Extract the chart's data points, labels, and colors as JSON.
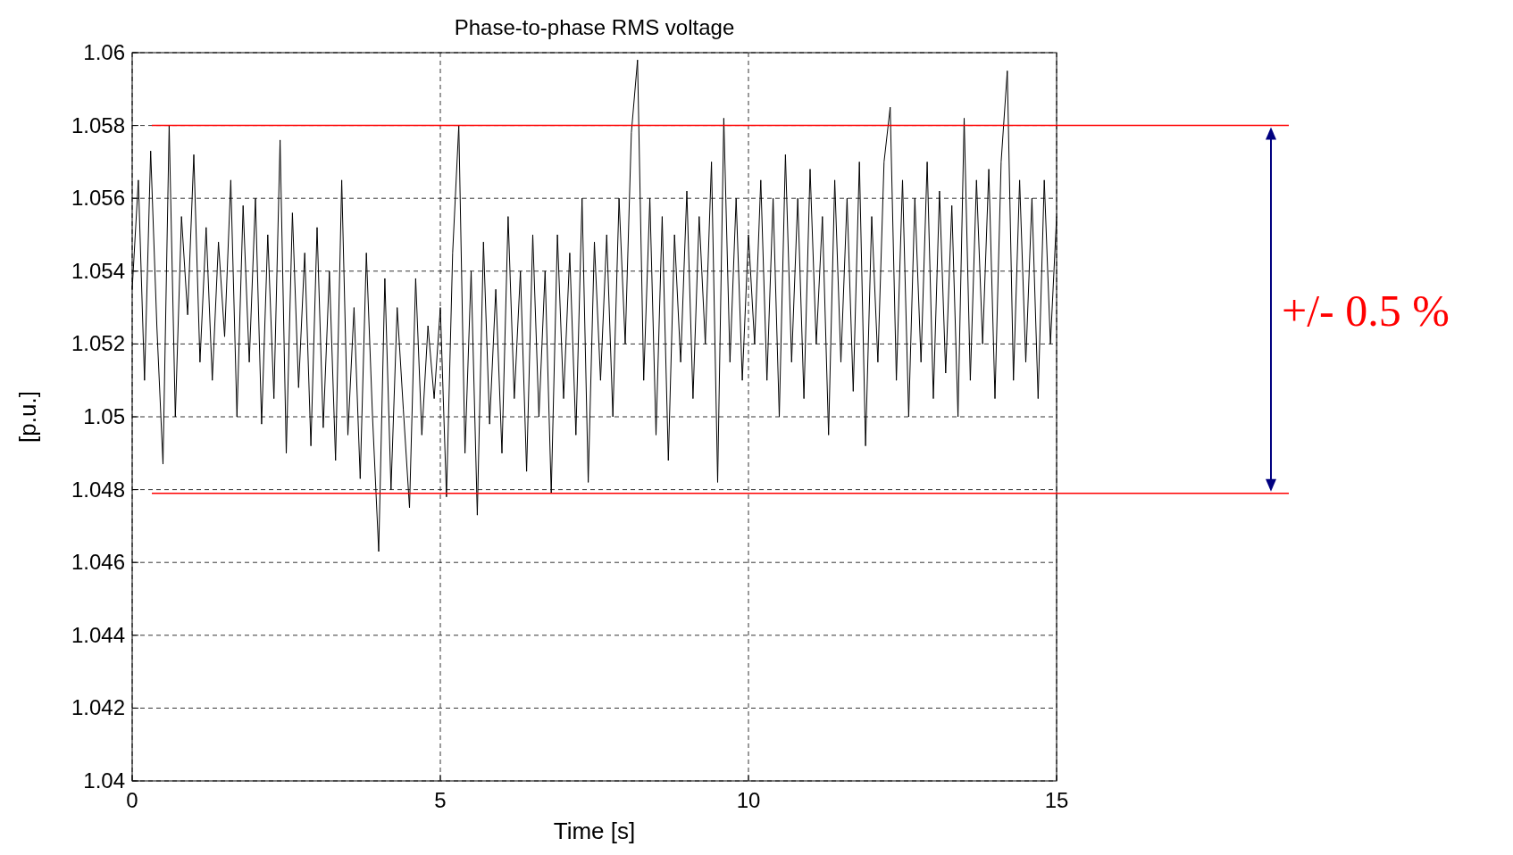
{
  "chart_data": {
    "type": "line",
    "title": "Phase-to-phase RMS voltage",
    "xlabel": "Time [s]",
    "ylabel": "[p.u.]",
    "xlim": [
      0,
      15
    ],
    "xticks": [
      0,
      5,
      10,
      15
    ],
    "ylim": [
      1.04,
      1.06
    ],
    "yticks": [
      1.04,
      1.042,
      1.044,
      1.046,
      1.048,
      1.05,
      1.052,
      1.054,
      1.056,
      1.058,
      1.06
    ],
    "grid": true,
    "ref_lines": [
      {
        "axis": "y",
        "value": 1.058,
        "color": "#ff0000"
      },
      {
        "axis": "y",
        "value": 1.0479,
        "color": "#ff0000"
      }
    ],
    "annotations": [
      "+/- 0.5 %"
    ],
    "series": [
      {
        "color": "#000000",
        "x": [
          0,
          0.1,
          0.2,
          0.3,
          0.4,
          0.5,
          0.6,
          0.7,
          0.8,
          0.9,
          1,
          1.1,
          1.2,
          1.3,
          1.4,
          1.5,
          1.6,
          1.7,
          1.8,
          1.9,
          2,
          2.1,
          2.2,
          2.3,
          2.4,
          2.5,
          2.6,
          2.7,
          2.8,
          2.9,
          3,
          3.1,
          3.2,
          3.3,
          3.4,
          3.5,
          3.6,
          3.7,
          3.8,
          3.9,
          4,
          4.1,
          4.2,
          4.3,
          4.4,
          4.5,
          4.6,
          4.7,
          4.8,
          4.9,
          5,
          5.1,
          5.2,
          5.3,
          5.4,
          5.5,
          5.6,
          5.7,
          5.8,
          5.9,
          6,
          6.1,
          6.2,
          6.3,
          6.4,
          6.5,
          6.6,
          6.7,
          6.8,
          6.9,
          7,
          7.1,
          7.2,
          7.3,
          7.4,
          7.5,
          7.6,
          7.7,
          7.8,
          7.9,
          8,
          8.1,
          8.2,
          8.3,
          8.4,
          8.5,
          8.6,
          8.7,
          8.8,
          8.9,
          9,
          9.1,
          9.2,
          9.3,
          9.4,
          9.5,
          9.6,
          9.7,
          9.8,
          9.9,
          10,
          10.1,
          10.2,
          10.3,
          10.4,
          10.5,
          10.6,
          10.7,
          10.8,
          10.9,
          11,
          11.1,
          11.2,
          11.3,
          11.4,
          11.5,
          11.6,
          11.7,
          11.8,
          11.9,
          12,
          12.1,
          12.2,
          12.3,
          12.4,
          12.5,
          12.6,
          12.7,
          12.8,
          12.9,
          13,
          13.1,
          13.2,
          13.3,
          13.4,
          13.5,
          13.6,
          13.7,
          13.8,
          13.9,
          14,
          14.1,
          14.2,
          14.3,
          14.4,
          14.5,
          14.6,
          14.7,
          14.8,
          14.9,
          15
        ],
        "values": [
          1.0535,
          1.0565,
          1.051,
          1.0573,
          1.0525,
          1.0487,
          1.058,
          1.05,
          1.0555,
          1.0528,
          1.0572,
          1.0515,
          1.0552,
          1.051,
          1.0548,
          1.0522,
          1.0565,
          1.05,
          1.0558,
          1.0515,
          1.056,
          1.0498,
          1.055,
          1.0505,
          1.0576,
          1.049,
          1.0556,
          1.0508,
          1.0545,
          1.0492,
          1.0552,
          1.0497,
          1.054,
          1.0488,
          1.0565,
          1.0495,
          1.053,
          1.0483,
          1.0545,
          1.05,
          1.0463,
          1.0538,
          1.048,
          1.053,
          1.0502,
          1.0475,
          1.0538,
          1.0495,
          1.0525,
          1.0505,
          1.053,
          1.0478,
          1.0545,
          1.058,
          1.049,
          1.054,
          1.0473,
          1.0548,
          1.0498,
          1.0535,
          1.049,
          1.0555,
          1.0505,
          1.054,
          1.0485,
          1.055,
          1.05,
          1.054,
          1.0479,
          1.055,
          1.0505,
          1.0545,
          1.0495,
          1.056,
          1.0482,
          1.0548,
          1.051,
          1.055,
          1.05,
          1.056,
          1.052,
          1.0578,
          1.0598,
          1.051,
          1.056,
          1.0495,
          1.0555,
          1.0488,
          1.055,
          1.0515,
          1.0562,
          1.0505,
          1.0555,
          1.052,
          1.057,
          1.0482,
          1.0582,
          1.0515,
          1.056,
          1.051,
          1.055,
          1.052,
          1.0565,
          1.051,
          1.056,
          1.05,
          1.0572,
          1.0515,
          1.056,
          1.0505,
          1.0568,
          1.052,
          1.0555,
          1.0495,
          1.0565,
          1.0515,
          1.056,
          1.0507,
          1.057,
          1.0492,
          1.0555,
          1.0515,
          1.057,
          1.0585,
          1.051,
          1.0565,
          1.05,
          1.056,
          1.0515,
          1.057,
          1.0505,
          1.0562,
          1.0512,
          1.0558,
          1.05,
          1.0582,
          1.051,
          1.0565,
          1.052,
          1.0568,
          1.0505,
          1.057,
          1.0595,
          1.051,
          1.0565,
          1.0515,
          1.056,
          1.0505,
          1.0565,
          1.052,
          1.0555
        ]
      }
    ]
  }
}
